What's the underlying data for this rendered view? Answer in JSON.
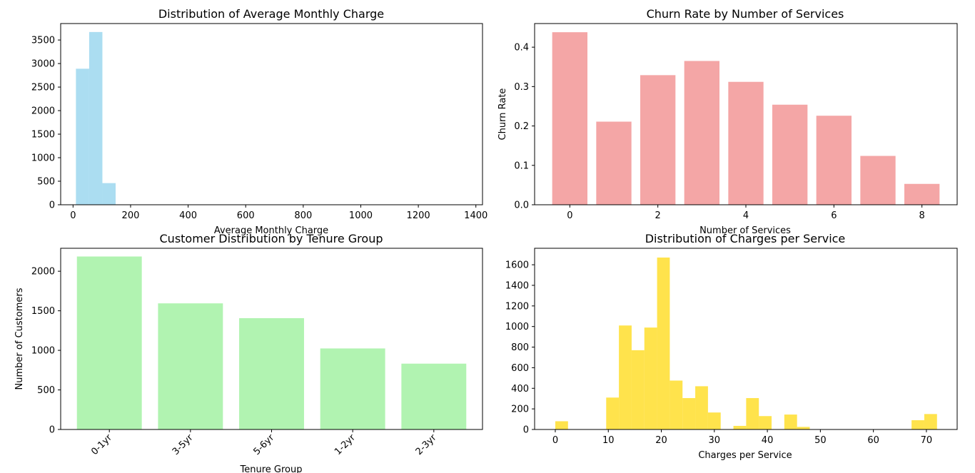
{
  "chart_data": [
    {
      "type": "histogram",
      "title": "Distribution of Average Monthly Charge",
      "xlabel": "Average Monthly Charge",
      "ylabel": "",
      "xlim": [
        -43,
        1423
      ],
      "ylim": [
        0,
        3850
      ],
      "xticks": [
        0,
        200,
        400,
        600,
        800,
        1000,
        1200,
        1400
      ],
      "yticks": [
        0,
        500,
        1000,
        1500,
        2000,
        2500,
        3000,
        3500
      ],
      "color": "#87ceeb",
      "bins": [
        {
          "x0": 10,
          "x1": 56,
          "value": 2890
        },
        {
          "x0": 56,
          "x1": 102,
          "value": 3670
        },
        {
          "x0": 102,
          "x1": 148,
          "value": 460
        },
        {
          "x0": 148,
          "x1": 194,
          "value": 5
        },
        {
          "x0": 194,
          "x1": 240,
          "value": 2
        },
        {
          "x0": 240,
          "x1": 1380,
          "value": 1
        }
      ]
    },
    {
      "type": "bar",
      "title": "Churn Rate by Number of Services",
      "xlabel": "Number of Services",
      "ylabel": "Churn Rate",
      "xlim": [
        -0.8,
        8.8
      ],
      "ylim": [
        0,
        0.46
      ],
      "xticks": [
        0,
        2,
        4,
        6,
        8
      ],
      "yticks": [
        0.0,
        0.1,
        0.2,
        0.3,
        0.4
      ],
      "color": "#f08080",
      "x": [
        0,
        1,
        2,
        3,
        4,
        5,
        6,
        7,
        8
      ],
      "values": [
        0.438,
        0.211,
        0.329,
        0.365,
        0.312,
        0.254,
        0.226,
        0.124,
        0.053
      ]
    },
    {
      "type": "bar",
      "title": "Customer Distribution by Tenure Group",
      "xlabel": "Tenure Group",
      "ylabel": "Number of Customers",
      "ylim": [
        0,
        2290
      ],
      "yticks": [
        0,
        500,
        1000,
        1500,
        2000
      ],
      "color": "#90ee90",
      "categories": [
        "0-1yr",
        "3-5yr",
        "5-6yr",
        "1-2yr",
        "2-3yr"
      ],
      "values": [
        2186,
        1594,
        1407,
        1024,
        832
      ]
    },
    {
      "type": "histogram",
      "title": "Distribution of Charges per Service",
      "xlabel": "Charges per Service",
      "ylabel": "",
      "xlim": [
        -3.9,
        75.8
      ],
      "ylim": [
        0,
        1760
      ],
      "xticks": [
        0,
        10,
        20,
        30,
        40,
        50,
        60,
        70
      ],
      "yticks": [
        0,
        200,
        400,
        600,
        800,
        1000,
        1200,
        1400,
        1600
      ],
      "color": "#ffd700",
      "bins": [
        {
          "x0": 0,
          "x1": 2.4,
          "value": 80
        },
        {
          "x0": 2.4,
          "x1": 4.8,
          "value": 0
        },
        {
          "x0": 4.8,
          "x1": 7.2,
          "value": 0
        },
        {
          "x0": 7.2,
          "x1": 9.6,
          "value": 0
        },
        {
          "x0": 9.6,
          "x1": 12.0,
          "value": 310
        },
        {
          "x0": 12.0,
          "x1": 14.4,
          "value": 1010
        },
        {
          "x0": 14.4,
          "x1": 16.8,
          "value": 770
        },
        {
          "x0": 16.8,
          "x1": 19.2,
          "value": 990
        },
        {
          "x0": 19.2,
          "x1": 21.6,
          "value": 1670
        },
        {
          "x0": 21.6,
          "x1": 24.0,
          "value": 475
        },
        {
          "x0": 24.0,
          "x1": 26.4,
          "value": 305
        },
        {
          "x0": 26.4,
          "x1": 28.8,
          "value": 420
        },
        {
          "x0": 28.8,
          "x1": 31.2,
          "value": 165
        },
        {
          "x0": 31.2,
          "x1": 33.6,
          "value": 0
        },
        {
          "x0": 33.6,
          "x1": 36.0,
          "value": 35
        },
        {
          "x0": 36.0,
          "x1": 38.4,
          "value": 305
        },
        {
          "x0": 38.4,
          "x1": 40.8,
          "value": 130
        },
        {
          "x0": 40.8,
          "x1": 43.2,
          "value": 0
        },
        {
          "x0": 43.2,
          "x1": 45.6,
          "value": 145
        },
        {
          "x0": 45.6,
          "x1": 48.0,
          "value": 25
        },
        {
          "x0": 48.0,
          "x1": 50.4,
          "value": 3
        },
        {
          "x0": 50.4,
          "x1": 52.8,
          "value": 3
        },
        {
          "x0": 52.8,
          "x1": 55.2,
          "value": 2
        },
        {
          "x0": 55.2,
          "x1": 57.6,
          "value": 2
        },
        {
          "x0": 57.6,
          "x1": 60.0,
          "value": 2
        },
        {
          "x0": 60.0,
          "x1": 62.4,
          "value": 2
        },
        {
          "x0": 62.4,
          "x1": 64.8,
          "value": 2
        },
        {
          "x0": 64.8,
          "x1": 67.2,
          "value": 3
        },
        {
          "x0": 67.2,
          "x1": 69.6,
          "value": 90
        },
        {
          "x0": 69.6,
          "x1": 72.0,
          "value": 150
        }
      ]
    }
  ]
}
